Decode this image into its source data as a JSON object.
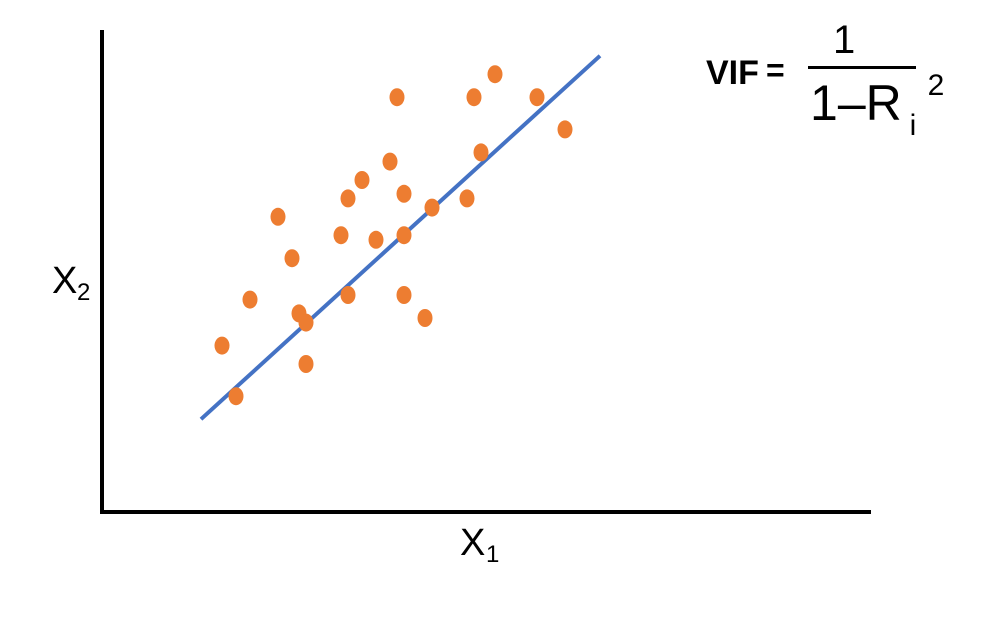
{
  "chart_data": {
    "type": "scatter",
    "title": "",
    "xlabel": "X",
    "xlabel_sub": "1",
    "ylabel": "X",
    "ylabel_sub": "2",
    "xlim": [
      0,
      10
    ],
    "ylim": [
      0,
      10
    ],
    "grid": false,
    "legend": "none",
    "points_color": "#ED7D31",
    "line_color": "#4472C4",
    "x": [
      1.6,
      1.8,
      2.0,
      2.4,
      2.6,
      2.8,
      2.7,
      2.8,
      3.3,
      3.4,
      3.4,
      3.6,
      3.8,
      4.0,
      4.2,
      4.1,
      4.2,
      4.2,
      4.6,
      4.5,
      5.1,
      5.3,
      5.5,
      5.2,
      6.1,
      6.5
    ],
    "y": [
      3.4,
      2.3,
      4.4,
      6.2,
      5.3,
      3.0,
      4.1,
      3.9,
      5.8,
      4.5,
      6.6,
      7.0,
      5.7,
      7.4,
      6.7,
      8.8,
      4.5,
      5.8,
      6.4,
      4.0,
      6.6,
      7.6,
      9.3,
      8.8,
      8.8,
      8.1
    ],
    "fit_line": {
      "x": [
        1.3,
        7.0
      ],
      "y": [
        1.8,
        9.7
      ]
    },
    "formula": {
      "lhs": "VIF",
      "eq": "=",
      "numerator": "1",
      "denominator_prefix": "1",
      "minus": "–",
      "denominator_r": "R",
      "denominator_sub": "i",
      "denominator_sup": "2"
    }
  }
}
